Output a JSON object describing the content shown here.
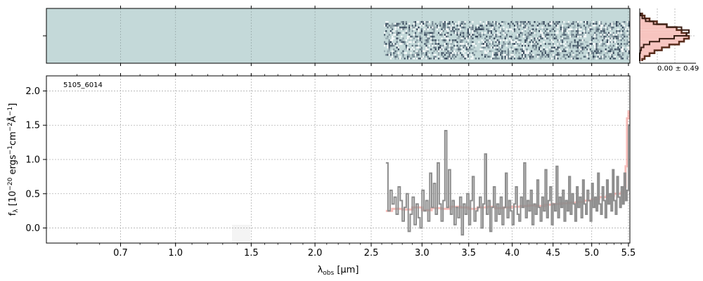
{
  "chart_data": [
    {
      "type": "heatmap",
      "panel": "2d-spectrum",
      "x_unit": "wavelength_um",
      "coverage_start_um": 2.62,
      "coverage_end_um": 5.5,
      "background_color": "#c4d9d9",
      "trace_color": "#1f2f45",
      "grid": true
    },
    {
      "type": "line",
      "panel": "histogram",
      "annotation": "0.00 ± 0.49",
      "fill_color": "#f7c4bf",
      "line_color": "#5a2e1e",
      "bins": [
        -4,
        -3.5,
        -3,
        -2.5,
        -2,
        -1.5,
        -1,
        -0.5,
        0,
        0.5,
        1,
        1.5,
        2,
        2.5,
        3,
        3.5,
        4
      ],
      "density": [
        0.05,
        0.1,
        0.2,
        0.35,
        0.55,
        0.75,
        0.85,
        0.95,
        1.0,
        0.9,
        0.8,
        0.6,
        0.45,
        0.3,
        0.2,
        0.1,
        0.05
      ],
      "model_density": [
        0.02,
        0.05,
        0.12,
        0.28,
        0.55,
        0.85,
        1.0,
        0.95,
        0.7,
        0.4,
        0.2,
        0.08,
        0.03,
        0.01,
        0.0,
        0.0,
        0.0
      ],
      "grid": true
    },
    {
      "type": "line",
      "panel": "1d-spectrum",
      "annotation": "5105_6014",
      "xlabel": "λ_obs [μm]",
      "ylabel": "f_λ [10^-20 ergs^-1cm^-2Å^-1]",
      "x_axis_transform": "sqrt",
      "xlim": [
        0.38,
        5.52
      ],
      "ylim": [
        -0.22,
        2.22
      ],
      "x_ticks": [
        0.7,
        1.0,
        1.5,
        2.0,
        2.5,
        3.0,
        3.5,
        4.0,
        4.5,
        5.0,
        5.5
      ],
      "x_tick_labels": [
        "0.7",
        "1.0",
        "1.5",
        "2.0",
        "2.5",
        "3.0",
        "3.5",
        "4.0",
        "4.5",
        "5.0",
        "5.5"
      ],
      "y_ticks": [
        0.0,
        0.5,
        1.0,
        1.5,
        2.0
      ],
      "y_tick_labels": [
        "0.0",
        "0.5",
        "1.0",
        "1.5",
        "2.0"
      ],
      "grid": true,
      "series": [
        {
          "role": "data",
          "color": "#8c8c8c",
          "step": true,
          "x": [
            2.64,
            2.66,
            2.68,
            2.7,
            2.72,
            2.74,
            2.76,
            2.78,
            2.8,
            2.82,
            2.84,
            2.86,
            2.88,
            2.9,
            2.92,
            2.94,
            2.96,
            2.98,
            3.0,
            3.02,
            3.04,
            3.06,
            3.08,
            3.1,
            3.12,
            3.14,
            3.16,
            3.18,
            3.2,
            3.22,
            3.24,
            3.26,
            3.28,
            3.3,
            3.32,
            3.34,
            3.36,
            3.38,
            3.4,
            3.42,
            3.44,
            3.46,
            3.48,
            3.5,
            3.52,
            3.54,
            3.56,
            3.58,
            3.6,
            3.62,
            3.64,
            3.66,
            3.68,
            3.7,
            3.72,
            3.74,
            3.76,
            3.78,
            3.8,
            3.82,
            3.84,
            3.86,
            3.88,
            3.9,
            3.92,
            3.94,
            3.96,
            3.98,
            4.0,
            4.02,
            4.04,
            4.06,
            4.08,
            4.1,
            4.12,
            4.14,
            4.16,
            4.18,
            4.2,
            4.22,
            4.24,
            4.26,
            4.28,
            4.3,
            4.32,
            4.34,
            4.36,
            4.38,
            4.4,
            4.42,
            4.44,
            4.46,
            4.48,
            4.5,
            4.52,
            4.54,
            4.56,
            4.58,
            4.6,
            4.62,
            4.64,
            4.66,
            4.68,
            4.7,
            4.72,
            4.74,
            4.76,
            4.78,
            4.8,
            4.82,
            4.84,
            4.86,
            4.88,
            4.9,
            4.92,
            4.94,
            4.96,
            4.98,
            5.0,
            5.02,
            5.04,
            5.06,
            5.08,
            5.1,
            5.12,
            5.14,
            5.16,
            5.18,
            5.2,
            5.22,
            5.24,
            5.26,
            5.28,
            5.3,
            5.32,
            5.34,
            5.36,
            5.38,
            5.4,
            5.42,
            5.44,
            5.46,
            5.48,
            5.5
          ],
          "y": [
            0.95,
            0.25,
            0.55,
            0.35,
            0.45,
            0.2,
            0.6,
            0.4,
            0.1,
            0.3,
            0.5,
            -0.05,
            0.2,
            0.45,
            0.05,
            0.35,
            0.15,
            0.0,
            0.55,
            0.25,
            0.4,
            0.1,
            0.8,
            0.3,
            0.65,
            0.2,
            0.95,
            0.35,
            0.1,
            0.4,
            1.42,
            0.3,
            0.85,
            0.2,
            0.4,
            0.05,
            0.3,
            0.15,
            0.45,
            -0.1,
            0.35,
            0.2,
            0.5,
            0.05,
            0.4,
            0.75,
            0.1,
            0.25,
            0.3,
            0.45,
            0.0,
            0.35,
            1.08,
            0.2,
            0.4,
            -0.05,
            0.3,
            0.6,
            0.1,
            0.35,
            0.2,
            0.45,
            0.05,
            0.3,
            0.8,
            0.15,
            0.4,
            0.25,
            0.05,
            0.35,
            0.6,
            0.2,
            0.1,
            0.45,
            0.3,
            0.95,
            0.15,
            0.4,
            0.25,
            0.55,
            0.05,
            0.35,
            0.2,
            0.7,
            0.3,
            0.1,
            0.45,
            0.25,
            0.85,
            0.15,
            0.4,
            0.6,
            0.05,
            0.35,
            0.25,
            0.9,
            0.15,
            0.45,
            0.3,
            0.55,
            0.1,
            0.4,
            0.25,
            0.75,
            0.2,
            0.5,
            0.35,
            0.1,
            0.6,
            0.3,
            0.45,
            0.15,
            0.7,
            0.35,
            0.2,
            0.55,
            0.4,
            0.1,
            0.65,
            0.3,
            0.45,
            0.25,
            0.8,
            0.35,
            0.2,
            0.6,
            0.4,
            0.15,
            0.7,
            0.35,
            0.5,
            0.25,
            0.85,
            0.4,
            0.2,
            0.75,
            0.45,
            0.3,
            0.6,
            0.35,
            0.8,
            0.4,
            0.55,
            1.5
          ]
        },
        {
          "role": "model",
          "color": "#f4a6a0",
          "step": true,
          "x": [
            2.64,
            2.7,
            2.8,
            2.9,
            3.0,
            3.1,
            3.2,
            3.3,
            3.4,
            3.5,
            3.6,
            3.7,
            3.8,
            3.9,
            4.0,
            4.1,
            4.2,
            4.3,
            4.4,
            4.5,
            4.6,
            4.7,
            4.8,
            4.9,
            5.0,
            5.1,
            5.2,
            5.3,
            5.4,
            5.44,
            5.46,
            5.48,
            5.5
          ],
          "y": [
            0.25,
            0.28,
            0.27,
            0.3,
            0.26,
            0.29,
            0.28,
            0.31,
            0.3,
            0.28,
            0.3,
            0.31,
            0.29,
            0.3,
            0.31,
            0.32,
            0.33,
            0.32,
            0.34,
            0.35,
            0.36,
            0.37,
            0.38,
            0.4,
            0.42,
            0.45,
            0.47,
            0.5,
            0.52,
            0.6,
            0.9,
            1.6,
            1.7
          ]
        }
      ]
    }
  ]
}
